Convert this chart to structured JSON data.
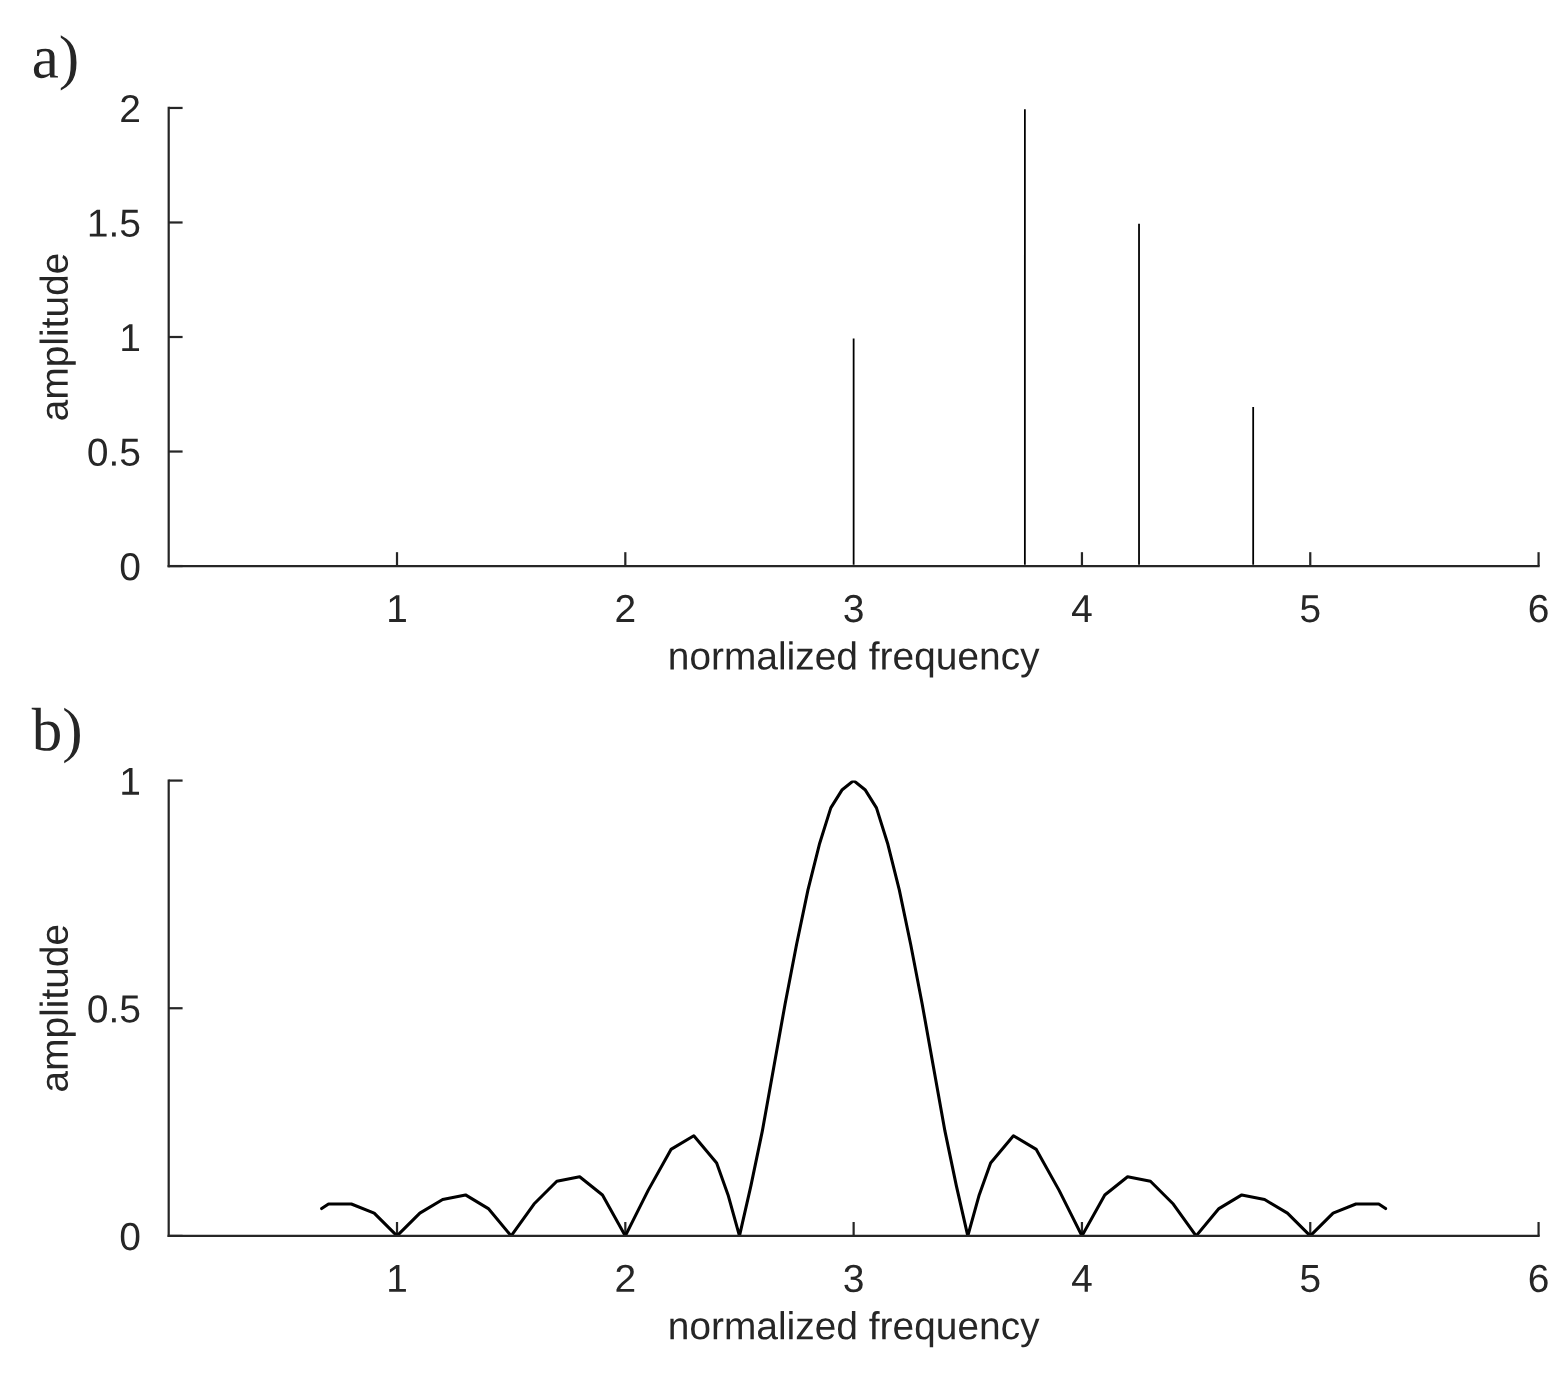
{
  "chart_data": [
    {
      "type": "bar",
      "title": "a)",
      "xlabel": "normalized frequency",
      "ylabel": "amplitude",
      "x": [
        3,
        3.75,
        4.25,
        4.75
      ],
      "values": [
        1,
        2,
        1.5,
        0.7
      ],
      "color": "#000000",
      "xlim": [
        0,
        6
      ],
      "xticks": [
        1,
        2,
        3,
        4,
        5,
        6
      ],
      "ylim": [
        0,
        2
      ],
      "yticks": [
        0,
        0.5,
        1,
        1.5,
        2
      ]
    },
    {
      "type": "line",
      "title": "b)",
      "xlabel": "normalized frequency",
      "ylabel": "amplitude",
      "x": [
        0.67,
        0.7,
        0.75,
        0.8,
        0.9,
        1.0,
        1.1,
        1.2,
        1.3,
        1.4,
        1.5,
        1.6,
        1.7,
        1.8,
        1.9,
        2.0,
        2.05,
        2.1,
        2.2,
        2.3,
        2.4,
        2.45,
        2.5,
        2.55,
        2.6,
        2.65,
        2.7,
        2.75,
        2.8,
        2.85,
        2.9,
        2.95,
        3.0,
        3.05,
        3.1,
        3.15,
        3.2,
        3.25,
        3.3,
        3.35,
        3.4,
        3.45,
        3.5,
        3.55,
        3.6,
        3.7,
        3.8,
        3.9,
        3.95,
        4.0,
        4.1,
        4.2,
        4.3,
        4.4,
        4.5,
        4.6,
        4.7,
        4.8,
        4.9,
        5.0,
        5.1,
        5.2,
        5.25,
        5.3,
        5.33
      ],
      "values": [
        0.06,
        0.07,
        0.07,
        0.07,
        0.05,
        0,
        0.05,
        0.08,
        0.09,
        0.06,
        0,
        0.07,
        0.12,
        0.13,
        0.09,
        0,
        0.05,
        0.1,
        0.19,
        0.22,
        0.16,
        0.09,
        0,
        0.11,
        0.23,
        0.37,
        0.51,
        0.64,
        0.76,
        0.86,
        0.94,
        0.98,
        1,
        0.98,
        0.94,
        0.86,
        0.76,
        0.64,
        0.51,
        0.37,
        0.23,
        0.11,
        0,
        0.09,
        0.16,
        0.22,
        0.19,
        0.1,
        0.05,
        0,
        0.09,
        0.13,
        0.12,
        0.07,
        0,
        0.06,
        0.09,
        0.08,
        0.05,
        0,
        0.05,
        0.07,
        0.07,
        0.07,
        0.06
      ],
      "color": "#000000",
      "line_style": "solid",
      "xlim": [
        0,
        6
      ],
      "xticks": [
        1,
        2,
        3,
        4,
        5,
        6
      ],
      "ylim": [
        0,
        1
      ],
      "yticks": [
        0,
        0.5,
        1
      ]
    }
  ]
}
